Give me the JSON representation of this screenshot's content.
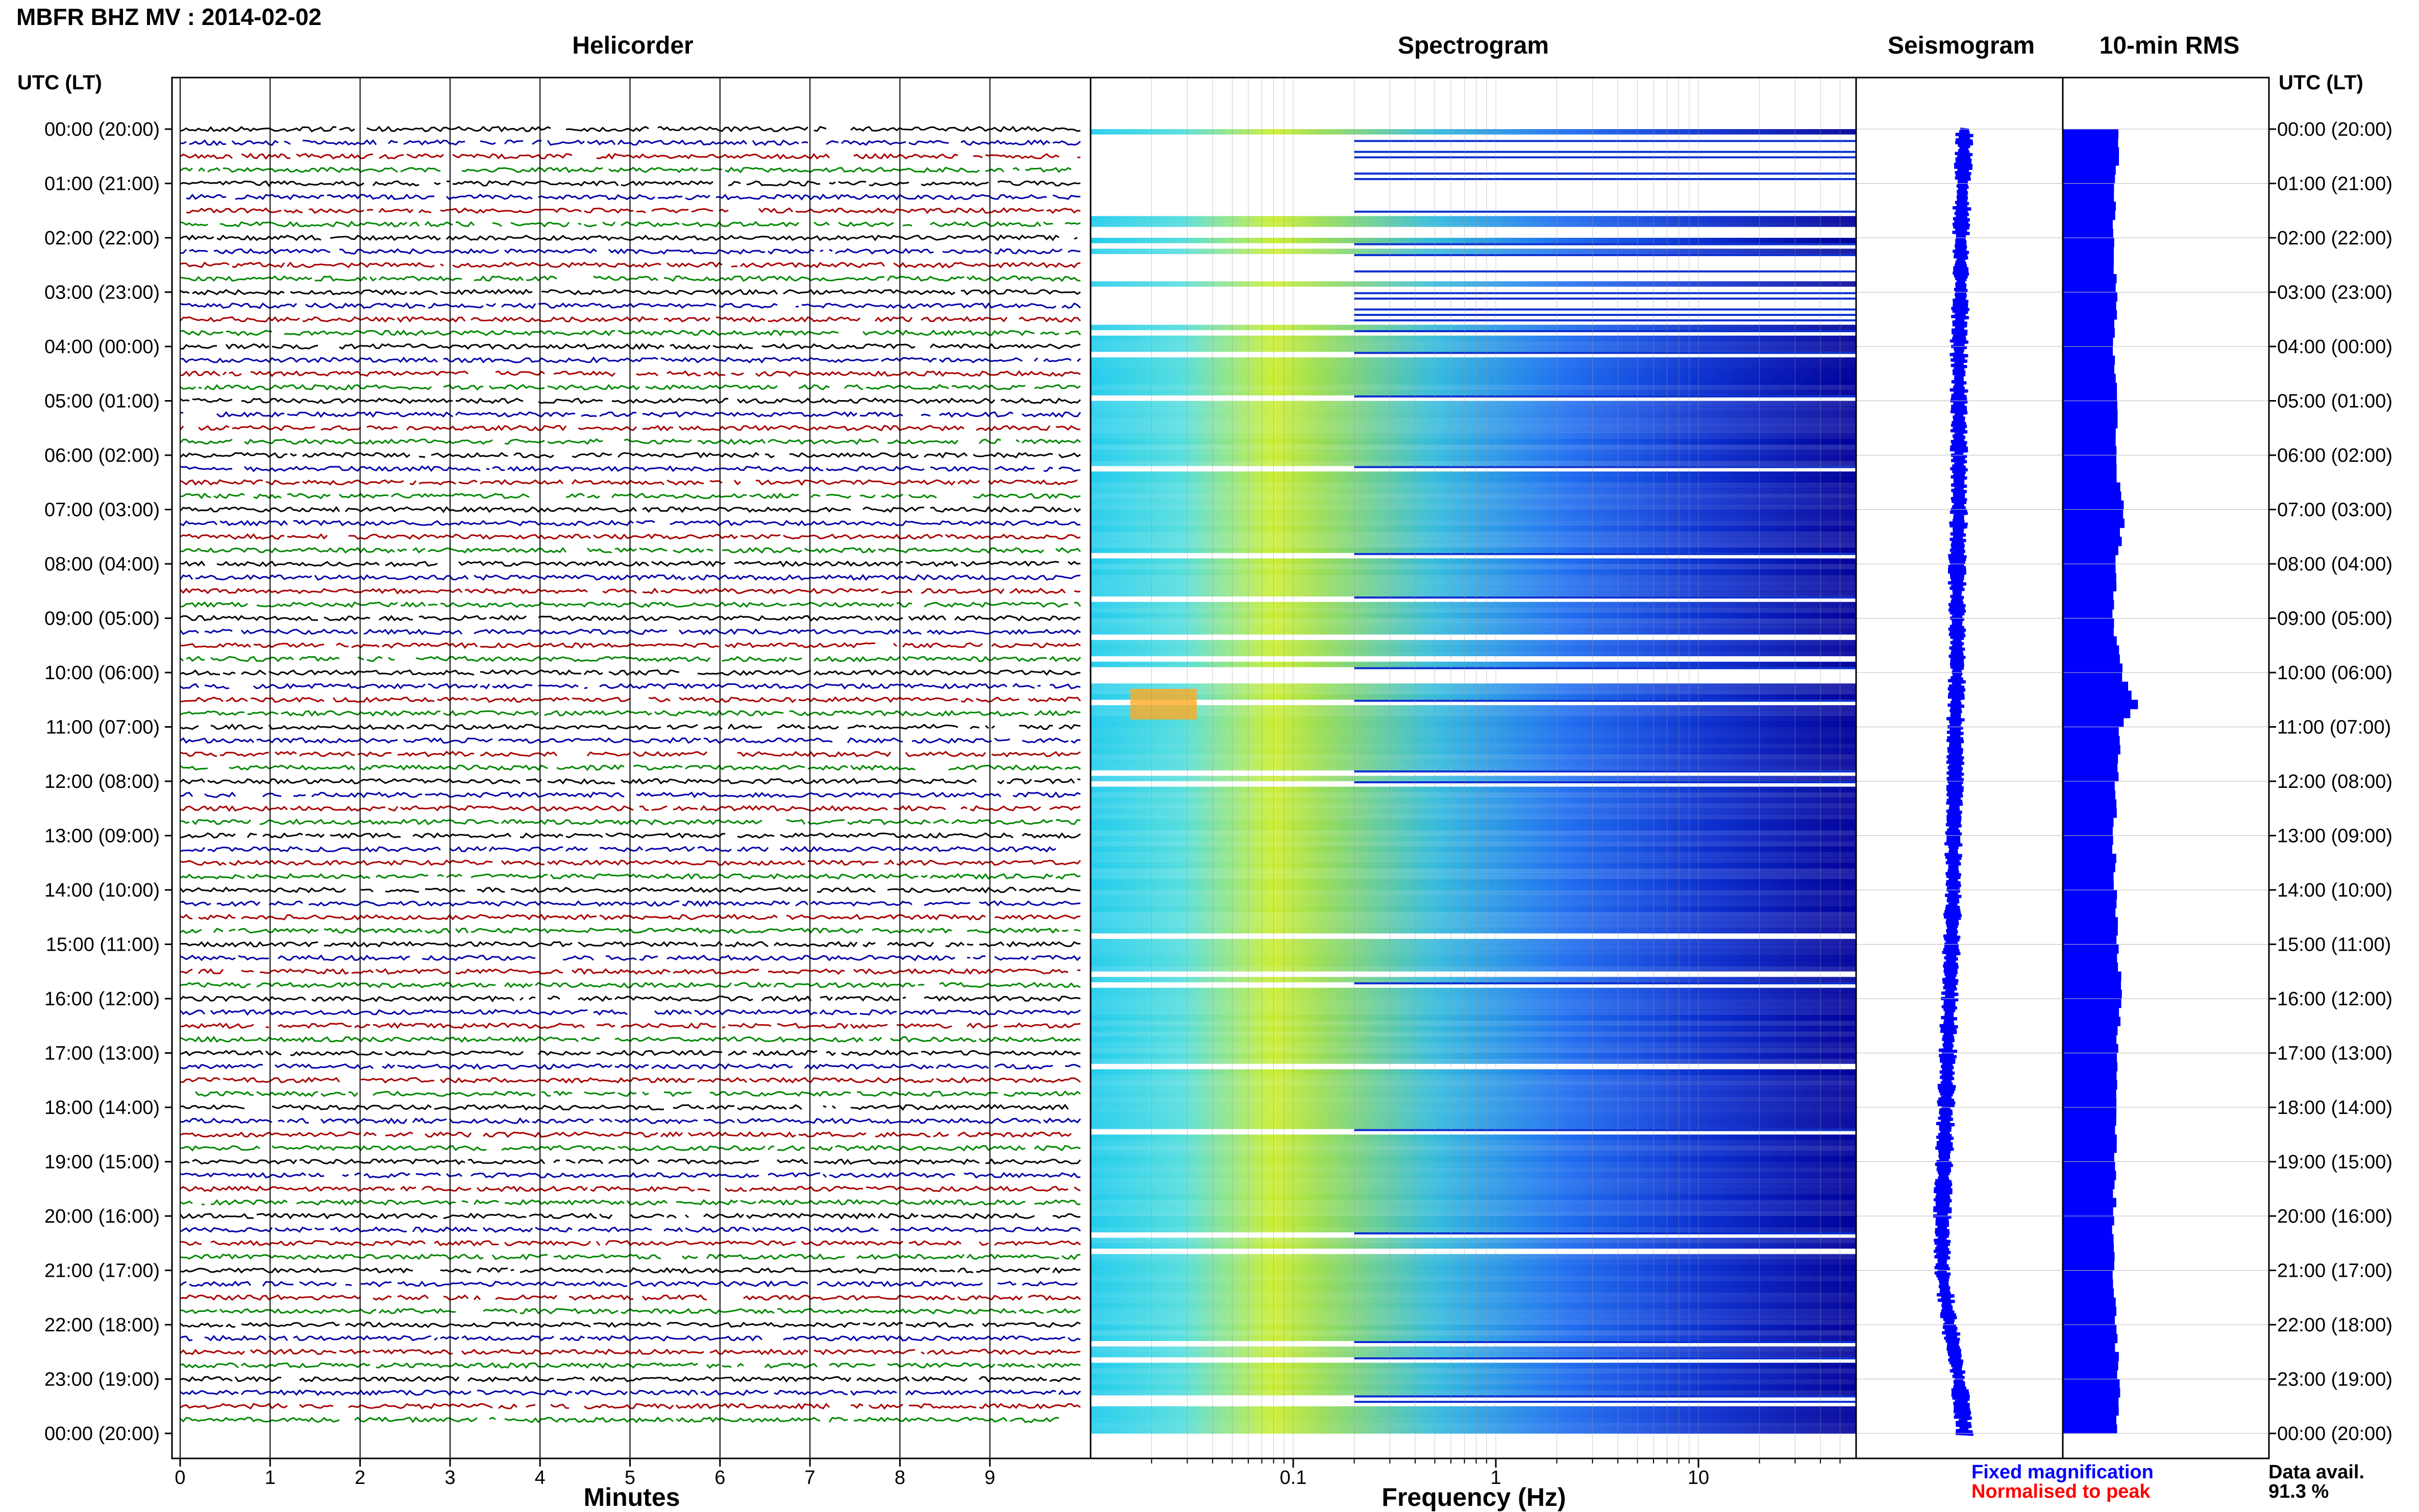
{
  "title": "MBFR BHZ MV : 2014-02-02",
  "panels": {
    "helicorder": "Helicorder",
    "spectrogram": "Spectrogram",
    "seismogram": "Seismogram",
    "rms": "10-min RMS"
  },
  "time_axis_header": "UTC (LT)",
  "time_labels": [
    "00:00 (20:00)",
    "01:00 (21:00)",
    "02:00 (22:00)",
    "03:00 (23:00)",
    "04:00 (00:00)",
    "05:00 (01:00)",
    "06:00 (02:00)",
    "07:00 (03:00)",
    "08:00 (04:00)",
    "09:00 (05:00)",
    "10:00 (06:00)",
    "11:00 (07:00)",
    "12:00 (08:00)",
    "13:00 (09:00)",
    "14:00 (10:00)",
    "15:00 (11:00)",
    "16:00 (12:00)",
    "17:00 (13:00)",
    "18:00 (14:00)",
    "19:00 (15:00)",
    "20:00 (16:00)",
    "21:00 (17:00)",
    "22:00 (18:00)",
    "23:00 (19:00)",
    "00:00 (20:00)"
  ],
  "minutes_axis": {
    "label": "Minutes",
    "ticks": [
      "0",
      "1",
      "2",
      "3",
      "4",
      "5",
      "6",
      "7",
      "8",
      "9"
    ]
  },
  "frequency_axis": {
    "label": "Frequency (Hz)",
    "ticks": [
      "0.1",
      "1",
      "10"
    ],
    "scale": "log",
    "range_hz": [
      0.01,
      60
    ]
  },
  "legend": {
    "fixed": {
      "text": "Fixed magnification",
      "color": "#0000ff"
    },
    "normalised": {
      "text": "Normalised to peak",
      "color": "#ff0000"
    }
  },
  "data_availability": {
    "label": "Data avail.",
    "value": "91.3 %"
  },
  "colors": {
    "trace_colors": [
      "#000000",
      "#0000aa",
      "#aa0000",
      "#008800"
    ],
    "seismogram": "#0000ff",
    "rms_bar": "#0000ff",
    "grid": "#999999"
  },
  "chart_data": {
    "type": "heatmap",
    "title": "MBFR BHZ MV : 2014-02-02",
    "hours_utc": [
      0,
      24
    ],
    "rms_profile_hours": [
      0,
      1,
      2,
      3,
      4,
      5,
      6,
      7,
      8,
      9,
      10,
      10.5,
      11,
      12,
      13,
      14,
      15,
      16,
      17,
      18,
      19,
      20,
      21,
      22,
      23,
      24
    ],
    "rms_profile_relative": [
      0.55,
      0.52,
      0.5,
      0.52,
      0.5,
      0.52,
      0.52,
      0.6,
      0.52,
      0.5,
      0.58,
      0.72,
      0.56,
      0.52,
      0.5,
      0.52,
      0.54,
      0.58,
      0.52,
      0.53,
      0.52,
      0.5,
      0.5,
      0.52,
      0.55,
      0.53
    ],
    "seismogram_offset_relative": [
      0.5,
      0.49,
      0.48,
      0.48,
      0.47,
      0.47,
      0.47,
      0.47,
      0.46,
      0.46,
      0.46,
      0.45,
      0.45,
      0.44,
      0.44,
      0.43,
      0.42,
      0.41,
      0.4,
      0.39,
      0.38,
      0.38,
      0.42,
      0.47,
      0.5
    ]
  }
}
